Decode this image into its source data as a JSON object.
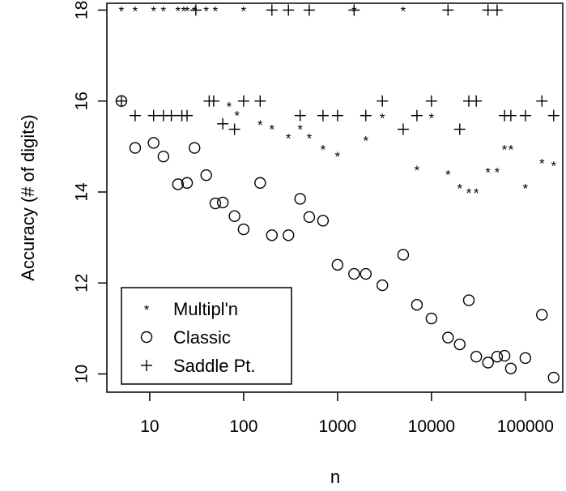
{
  "chart_data": {
    "type": "scatter",
    "title": "",
    "xlabel": "n",
    "ylabel": "Accuracy (# of digits)",
    "x_scale": "log",
    "xlim": [
      3.5,
      250000
    ],
    "ylim": [
      9.6,
      18.15
    ],
    "x_ticks": [
      10,
      100,
      1000,
      10000,
      100000
    ],
    "x_tick_labels": [
      "10",
      "100",
      "1000",
      "10000",
      "100000"
    ],
    "y_ticks": [
      10,
      12,
      14,
      16,
      18
    ],
    "y_tick_labels": [
      "10",
      "12",
      "14",
      "16",
      "18"
    ],
    "grid": false,
    "legend_position": "bottom-left",
    "series": [
      {
        "name": "Multipl'n",
        "marker": "*",
        "x": [
          5,
          7,
          11,
          14,
          20,
          23,
          25,
          30,
          40,
          50,
          100,
          1500,
          5000,
          70,
          85,
          150,
          200,
          300,
          400,
          500,
          700,
          1000,
          2000,
          3000,
          7000,
          10000,
          15000,
          20000,
          25000,
          30000,
          40000,
          50000,
          60000,
          70000,
          100000,
          150000,
          200000
        ],
        "y": [
          18,
          18,
          18,
          18,
          18,
          18,
          18,
          18,
          18,
          18,
          18,
          18,
          18,
          15.9,
          15.7,
          15.5,
          15.4,
          15.2,
          15.4,
          15.2,
          14.95,
          14.8,
          15.15,
          15.65,
          14.5,
          15.65,
          14.4,
          14.1,
          14.0,
          14.0,
          14.45,
          14.45,
          14.95,
          14.95,
          14.1,
          14.65,
          14.6
        ]
      },
      {
        "name": "Classic",
        "marker": "o",
        "x": [
          5,
          7,
          11,
          14,
          20,
          25,
          30,
          40,
          50,
          60,
          80,
          100,
          150,
          200,
          300,
          400,
          500,
          700,
          1000,
          1500,
          2000,
          3000,
          5000,
          7000,
          10000,
          15000,
          20000,
          25000,
          30000,
          40000,
          50000,
          60000,
          70000,
          100000,
          150000,
          200000
        ],
        "y": [
          16.0,
          14.97,
          15.08,
          14.78,
          14.17,
          14.2,
          14.97,
          14.37,
          13.75,
          13.77,
          13.47,
          13.18,
          14.2,
          13.05,
          13.05,
          13.85,
          13.45,
          13.37,
          12.4,
          12.2,
          12.2,
          11.95,
          12.62,
          11.52,
          11.22,
          10.8,
          10.65,
          11.62,
          10.38,
          10.25,
          10.38,
          10.4,
          10.12,
          10.35,
          11.3,
          9.92
        ]
      },
      {
        "name": "Saddle Pt.",
        "marker": "+",
        "x": [
          5,
          7,
          11,
          14,
          17,
          22,
          25,
          31,
          43,
          48,
          60,
          80,
          100,
          150,
          200,
          300,
          400,
          500,
          700,
          1000,
          1500,
          2000,
          3000,
          5000,
          7000,
          10000,
          15000,
          20000,
          25000,
          30000,
          40000,
          50000,
          60000,
          70000,
          100000,
          150000,
          200000
        ],
        "y": [
          16.0,
          15.68,
          15.68,
          15.68,
          15.68,
          15.68,
          15.68,
          18.0,
          16.0,
          16.0,
          15.5,
          15.38,
          16.0,
          16.0,
          18.0,
          18.0,
          15.68,
          18.0,
          15.68,
          15.68,
          18.0,
          15.68,
          16.0,
          15.38,
          15.68,
          16.0,
          18.0,
          15.38,
          16.0,
          16.0,
          18.0,
          18.0,
          15.68,
          15.68,
          15.68,
          16.0,
          15.68
        ]
      }
    ]
  }
}
